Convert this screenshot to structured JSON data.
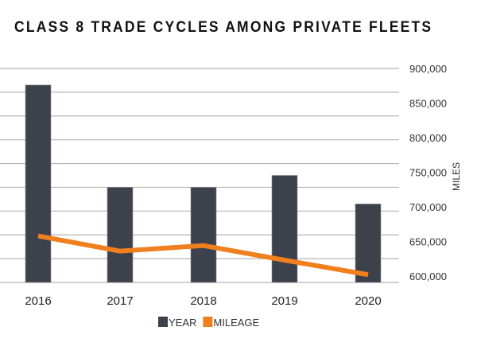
{
  "chart_data": {
    "type": "bar",
    "title": "CLASS 8 TRADE CYCLES AMONG PRIVATE FLEETS",
    "categories": [
      "2016",
      "2017",
      "2018",
      "2019",
      "2020"
    ],
    "series": [
      {
        "name": "YEAR",
        "type": "bar",
        "axis": "left (unlabeled)",
        "color": "#3c414c",
        "values": [
          8.3,
          4.0,
          4.0,
          4.5,
          3.3
        ]
      },
      {
        "name": "MILEAGE",
        "type": "line",
        "axis": "right",
        "color": "#f07f1e",
        "values": [
          658000,
          636000,
          644000,
          623000,
          602000
        ]
      }
    ],
    "left_axis": {
      "label": "",
      "range": [
        0,
        9
      ],
      "ticks_visible": false
    },
    "right_axis": {
      "label": "MILES",
      "range": [
        600000,
        900000
      ],
      "ticks": [
        900000,
        850000,
        800000,
        750000,
        700000,
        650000,
        600000
      ],
      "tick_labels": [
        "900,000",
        "850,000",
        "800,000",
        "750,000",
        "700,000",
        "650,000",
        "600,000"
      ]
    },
    "xlabel": "",
    "grid": true,
    "legend": {
      "placement": "bottom-center",
      "entries": [
        {
          "label": "YEAR",
          "color": "#3c414c"
        },
        {
          "label": "MILEAGE",
          "color": "#f07f1e"
        }
      ]
    }
  }
}
